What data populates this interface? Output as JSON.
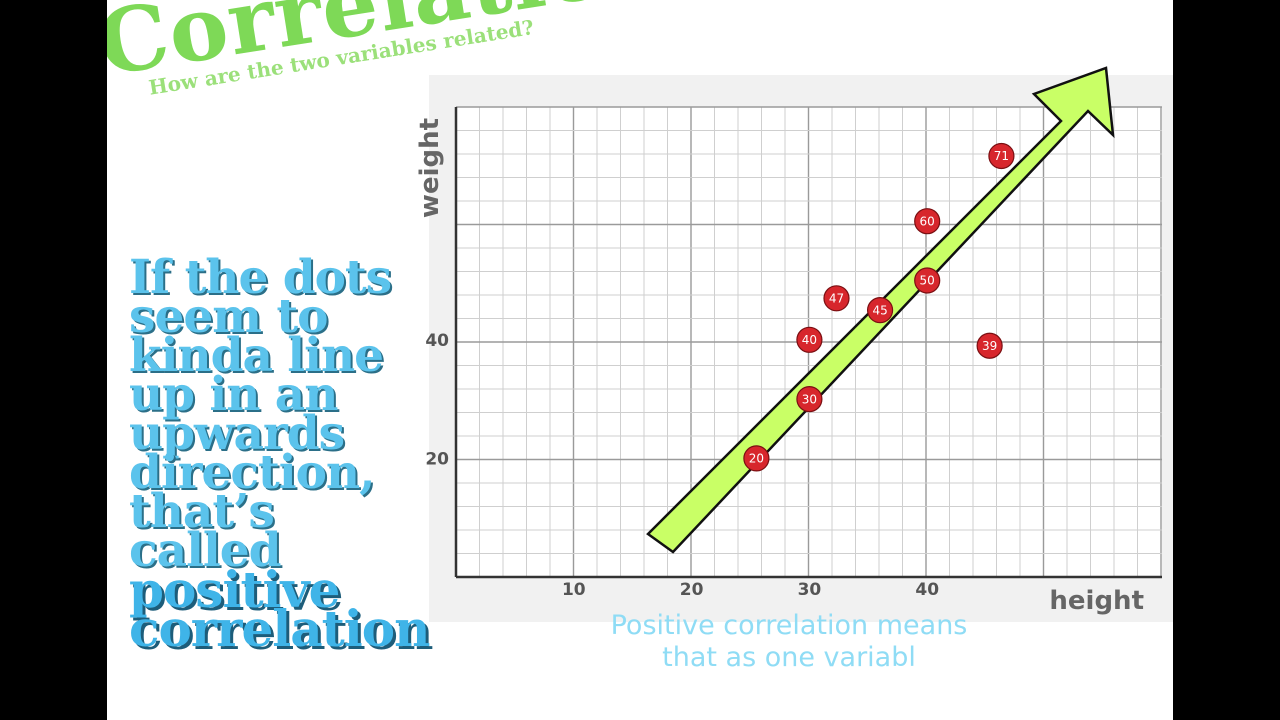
{
  "slide": {
    "title": "Correlation",
    "subtitle": "How are the two variables related?",
    "body_lines": [
      "If the dots",
      "seem to",
      "kinda line",
      "up in an",
      "upwards",
      "direction,",
      "that’s",
      "called"
    ],
    "body_strong": [
      "positive",
      "correlation"
    ],
    "caption_lines": [
      "Positive correlation means",
      "that as one variabl"
    ]
  },
  "colors": {
    "title": "#7ed957",
    "body": "#5bc3ec",
    "caption": "#8fdcf5",
    "arrow_fill": "#c9ff66",
    "dot": "#d7262c",
    "background": "#ffffff"
  },
  "chart_data": {
    "type": "scatter",
    "title": "",
    "xlabel": "height",
    "ylabel": "weight",
    "x_ticks": [
      10,
      20,
      30,
      40
    ],
    "y_ticks": [
      20,
      40
    ],
    "xlim": [
      0,
      60
    ],
    "ylim": [
      0,
      80
    ],
    "grid": true,
    "points": [
      {
        "x": 25.5,
        "y": 20,
        "label": "20"
      },
      {
        "x": 30,
        "y": 30,
        "label": "30"
      },
      {
        "x": 30,
        "y": 40,
        "label": "40"
      },
      {
        "x": 32.3,
        "y": 47,
        "label": "47"
      },
      {
        "x": 36,
        "y": 45,
        "label": "45"
      },
      {
        "x": 40,
        "y": 50,
        "label": "50"
      },
      {
        "x": 40,
        "y": 60,
        "label": "60"
      },
      {
        "x": 45.3,
        "y": 39,
        "label": "39"
      },
      {
        "x": 46.3,
        "y": 71,
        "label": "71"
      }
    ],
    "annotations": [
      "trend arrow pointing upward to the right"
    ]
  }
}
